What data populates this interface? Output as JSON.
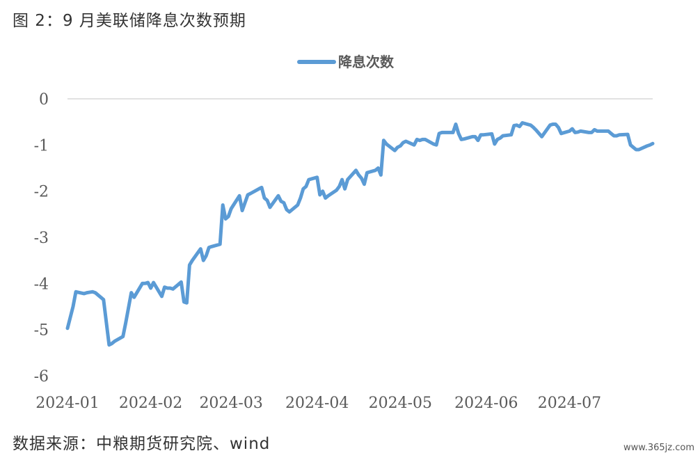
{
  "figure": {
    "title": "图 2：9 月美联储降息次数预期",
    "source": "数据来源：中粮期货研究院、wind",
    "watermark": "www.365jz.com"
  },
  "colors": {
    "series": "#5b9bd5",
    "axis": "#d9d9d9",
    "text": "#595959"
  },
  "chart_data": {
    "type": "line",
    "title": "",
    "xlabel": "",
    "ylabel": "",
    "ylim": [
      -6,
      0
    ],
    "yticks": [
      0,
      -1,
      -2,
      -3,
      -4,
      -5,
      -6
    ],
    "xlim": [
      "2024-01-02",
      "2024-07-31"
    ],
    "xticks": [
      "2024-01",
      "2024-02",
      "2024-03",
      "2024-04",
      "2024-05",
      "2024-06",
      "2024-07"
    ],
    "grid": false,
    "legend": "top-center",
    "series": [
      {
        "name": "降息次数",
        "color": "#5b9bd5",
        "points": [
          [
            "2024-01-02",
            -4.97
          ],
          [
            "2024-01-04",
            -4.5
          ],
          [
            "2024-01-05",
            -4.18
          ],
          [
            "2024-01-08",
            -4.22
          ],
          [
            "2024-01-09",
            -4.2
          ],
          [
            "2024-01-11",
            -4.18
          ],
          [
            "2024-01-12",
            -4.2
          ],
          [
            "2024-01-15",
            -4.35
          ],
          [
            "2024-01-17",
            -5.33
          ],
          [
            "2024-01-18",
            -5.3
          ],
          [
            "2024-01-19",
            -5.25
          ],
          [
            "2024-01-22",
            -5.15
          ],
          [
            "2024-01-23",
            -4.85
          ],
          [
            "2024-01-25",
            -4.2
          ],
          [
            "2024-01-26",
            -4.3
          ],
          [
            "2024-01-29",
            -4.0
          ],
          [
            "2024-01-30",
            -4.0
          ],
          [
            "2024-01-31",
            -3.98
          ],
          [
            "2024-02-01",
            -4.1
          ],
          [
            "2024-02-02",
            -3.98
          ],
          [
            "2024-02-05",
            -4.28
          ],
          [
            "2024-02-06",
            -4.08
          ],
          [
            "2024-02-07",
            -4.1
          ],
          [
            "2024-02-08",
            -4.1
          ],
          [
            "2024-02-09",
            -4.12
          ],
          [
            "2024-02-12",
            -3.97
          ],
          [
            "2024-02-13",
            -4.4
          ],
          [
            "2024-02-14",
            -4.42
          ],
          [
            "2024-02-15",
            -3.6
          ],
          [
            "2024-02-16",
            -3.5
          ],
          [
            "2024-02-19",
            -3.25
          ],
          [
            "2024-02-20",
            -3.5
          ],
          [
            "2024-02-21",
            -3.4
          ],
          [
            "2024-02-22",
            -3.22
          ],
          [
            "2024-02-23",
            -3.2
          ],
          [
            "2024-02-26",
            -3.15
          ],
          [
            "2024-02-27",
            -2.3
          ],
          [
            "2024-02-28",
            -2.6
          ],
          [
            "2024-02-29",
            -2.55
          ],
          [
            "2024-03-01",
            -2.38
          ],
          [
            "2024-03-04",
            -2.1
          ],
          [
            "2024-03-05",
            -2.42
          ],
          [
            "2024-03-06",
            -2.25
          ],
          [
            "2024-03-07",
            -2.08
          ],
          [
            "2024-03-08",
            -2.05
          ],
          [
            "2024-03-11",
            -1.95
          ],
          [
            "2024-03-12",
            -1.92
          ],
          [
            "2024-03-13",
            -2.15
          ],
          [
            "2024-03-14",
            -2.2
          ],
          [
            "2024-03-15",
            -2.35
          ],
          [
            "2024-03-18",
            -2.1
          ],
          [
            "2024-03-19",
            -2.22
          ],
          [
            "2024-03-20",
            -2.25
          ],
          [
            "2024-03-21",
            -2.4
          ],
          [
            "2024-03-22",
            -2.45
          ],
          [
            "2024-03-25",
            -2.3
          ],
          [
            "2024-03-26",
            -2.15
          ],
          [
            "2024-03-27",
            -1.95
          ],
          [
            "2024-03-28",
            -1.9
          ],
          [
            "2024-03-29",
            -1.75
          ],
          [
            "2024-04-01",
            -1.7
          ],
          [
            "2024-04-02",
            -2.08
          ],
          [
            "2024-04-03",
            -2.0
          ],
          [
            "2024-04-04",
            -2.15
          ],
          [
            "2024-04-05",
            -2.1
          ],
          [
            "2024-04-08",
            -1.98
          ],
          [
            "2024-04-09",
            -1.9
          ],
          [
            "2024-04-10",
            -1.75
          ],
          [
            "2024-04-11",
            -1.95
          ],
          [
            "2024-04-12",
            -1.75
          ],
          [
            "2024-04-15",
            -1.55
          ],
          [
            "2024-04-16",
            -1.65
          ],
          [
            "2024-04-17",
            -1.72
          ],
          [
            "2024-04-18",
            -1.85
          ],
          [
            "2024-04-19",
            -1.6
          ],
          [
            "2024-04-22",
            -1.55
          ],
          [
            "2024-04-23",
            -1.5
          ],
          [
            "2024-04-24",
            -1.65
          ],
          [
            "2024-04-25",
            -0.9
          ],
          [
            "2024-04-26",
            -0.98
          ],
          [
            "2024-04-29",
            -1.12
          ],
          [
            "2024-04-30",
            -1.05
          ],
          [
            "2024-05-01",
            -1.02
          ],
          [
            "2024-05-02",
            -0.95
          ],
          [
            "2024-05-03",
            -0.92
          ],
          [
            "2024-05-06",
            -1.0
          ],
          [
            "2024-05-07",
            -0.88
          ],
          [
            "2024-05-08",
            -0.9
          ],
          [
            "2024-05-09",
            -0.88
          ],
          [
            "2024-05-10",
            -0.88
          ],
          [
            "2024-05-13",
            -0.98
          ],
          [
            "2024-05-14",
            -1.0
          ],
          [
            "2024-05-15",
            -0.75
          ],
          [
            "2024-05-16",
            -0.73
          ],
          [
            "2024-05-17",
            -0.73
          ],
          [
            "2024-05-20",
            -0.73
          ],
          [
            "2024-05-21",
            -0.55
          ],
          [
            "2024-05-22",
            -0.75
          ],
          [
            "2024-05-23",
            -0.88
          ],
          [
            "2024-05-24",
            -0.87
          ],
          [
            "2024-05-27",
            -0.82
          ],
          [
            "2024-05-28",
            -0.82
          ],
          [
            "2024-05-29",
            -0.9
          ],
          [
            "2024-05-30",
            -0.78
          ],
          [
            "2024-05-31",
            -0.78
          ],
          [
            "2024-06-03",
            -0.76
          ],
          [
            "2024-06-04",
            -0.98
          ],
          [
            "2024-06-05",
            -0.88
          ],
          [
            "2024-06-06",
            -0.85
          ],
          [
            "2024-06-07",
            -0.8
          ],
          [
            "2024-06-10",
            -0.78
          ],
          [
            "2024-06-11",
            -0.58
          ],
          [
            "2024-06-12",
            -0.57
          ],
          [
            "2024-06-13",
            -0.6
          ],
          [
            "2024-06-14",
            -0.52
          ],
          [
            "2024-06-17",
            -0.57
          ],
          [
            "2024-06-18",
            -0.62
          ],
          [
            "2024-06-19",
            -0.68
          ],
          [
            "2024-06-20",
            -0.75
          ],
          [
            "2024-06-21",
            -0.82
          ],
          [
            "2024-06-24",
            -0.57
          ],
          [
            "2024-06-25",
            -0.55
          ],
          [
            "2024-06-26",
            -0.55
          ],
          [
            "2024-06-27",
            -0.62
          ],
          [
            "2024-06-28",
            -0.75
          ],
          [
            "2024-07-01",
            -0.7
          ],
          [
            "2024-07-02",
            -0.65
          ],
          [
            "2024-07-03",
            -0.73
          ],
          [
            "2024-07-04",
            -0.72
          ],
          [
            "2024-07-05",
            -0.7
          ],
          [
            "2024-07-08",
            -0.73
          ],
          [
            "2024-07-09",
            -0.73
          ],
          [
            "2024-07-10",
            -0.67
          ],
          [
            "2024-07-11",
            -0.7
          ],
          [
            "2024-07-12",
            -0.7
          ],
          [
            "2024-07-15",
            -0.7
          ],
          [
            "2024-07-16",
            -0.75
          ],
          [
            "2024-07-17",
            -0.8
          ],
          [
            "2024-07-18",
            -0.8
          ],
          [
            "2024-07-19",
            -0.78
          ],
          [
            "2024-07-22",
            -0.77
          ],
          [
            "2024-07-23",
            -1.0
          ],
          [
            "2024-07-24",
            -1.05
          ],
          [
            "2024-07-25",
            -1.1
          ],
          [
            "2024-07-26",
            -1.1
          ],
          [
            "2024-07-29",
            -1.02
          ],
          [
            "2024-07-30",
            -1.0
          ],
          [
            "2024-07-31",
            -0.97
          ]
        ]
      }
    ]
  }
}
